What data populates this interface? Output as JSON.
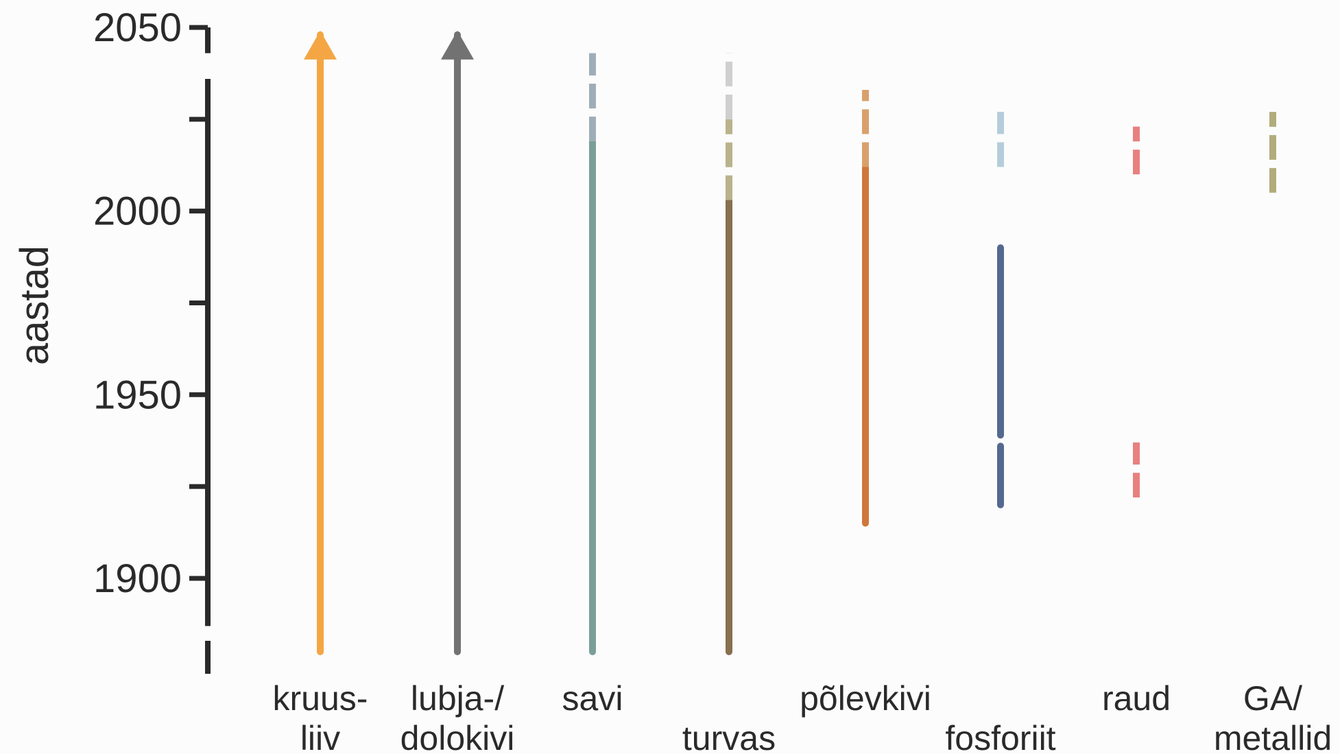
{
  "chart_data": {
    "type": "timeline",
    "ylabel": "aastad",
    "ylim": [
      1880,
      2050
    ],
    "yticks": [
      1900,
      1950,
      2000,
      2050
    ],
    "ytick_labels": [
      "1900",
      "1950",
      "2000",
      "2050"
    ],
    "categories": [
      {
        "id": "kruusliiv",
        "label_lines": [
          "kruus-",
          "liiv"
        ],
        "color": "#f4a644",
        "arrow": true,
        "segments": [
          {
            "start": 1880,
            "end": 2048,
            "style": "solid"
          }
        ]
      },
      {
        "id": "lubjakivi",
        "label_lines": [
          "lubja-/",
          "dolokivi"
        ],
        "color": "#727272",
        "arrow": true,
        "segments": [
          {
            "start": 1880,
            "end": 2048,
            "style": "solid"
          }
        ]
      },
      {
        "id": "savi",
        "label_lines": [
          "savi"
        ],
        "color": "#7a9f98",
        "segments": [
          {
            "start": 1880,
            "end": 2019,
            "style": "solid"
          },
          {
            "start": 2019,
            "end": 2043,
            "style": "dashed",
            "color": "#9fadb8"
          }
        ]
      },
      {
        "id": "turvas",
        "label_lines": [
          "",
          "turvas"
        ],
        "color": "#86704f",
        "segments": [
          {
            "start": 1880,
            "end": 2003,
            "style": "solid"
          },
          {
            "start": 2003,
            "end": 2025,
            "style": "dashed",
            "color": "#b9b38c"
          },
          {
            "start": 2025,
            "end": 2043,
            "style": "dashed",
            "color": "#cfcfcf"
          }
        ]
      },
      {
        "id": "polevkivi",
        "label_lines": [
          "põlevkivi"
        ],
        "color": "#d0763b",
        "segments": [
          {
            "start": 1915,
            "end": 2012,
            "style": "solid"
          },
          {
            "start": 2012,
            "end": 2033,
            "style": "dashed",
            "color": "#d9a06c"
          }
        ]
      },
      {
        "id": "fosforiit",
        "label_lines": [
          "",
          "fosforiit"
        ],
        "color": "#54698f",
        "segments": [
          {
            "start": 1920,
            "end": 1936,
            "style": "solid"
          },
          {
            "start": 1939,
            "end": 1990,
            "style": "solid"
          },
          {
            "start": 2012,
            "end": 2027,
            "style": "dashed",
            "color": "#b5cdda"
          }
        ]
      },
      {
        "id": "raud",
        "label_lines": [
          "raud"
        ],
        "color": "#e98080",
        "segments": [
          {
            "start": 1922,
            "end": 1937,
            "style": "dashed"
          },
          {
            "start": 2010,
            "end": 2023,
            "style": "dashed"
          }
        ]
      },
      {
        "id": "ga_metallid",
        "label_lines": [
          "GA/",
          "metallid"
        ],
        "color": "#b2ac7c",
        "segments": [
          {
            "start": 2005,
            "end": 2027,
            "style": "dashed"
          }
        ]
      }
    ]
  }
}
